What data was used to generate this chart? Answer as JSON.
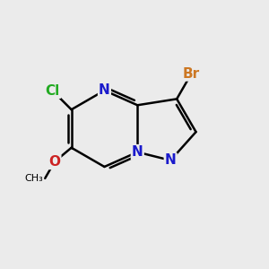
{
  "background_color": "#ebebeb",
  "bond_color": "#000000",
  "bond_width": 1.8,
  "atom_colors": {
    "N": "#1a1acc",
    "Br": "#cc7722",
    "Cl": "#22aa22",
    "O": "#cc2222",
    "C": "#000000"
  },
  "font_size_atom": 11,
  "font_size_sub": 9
}
